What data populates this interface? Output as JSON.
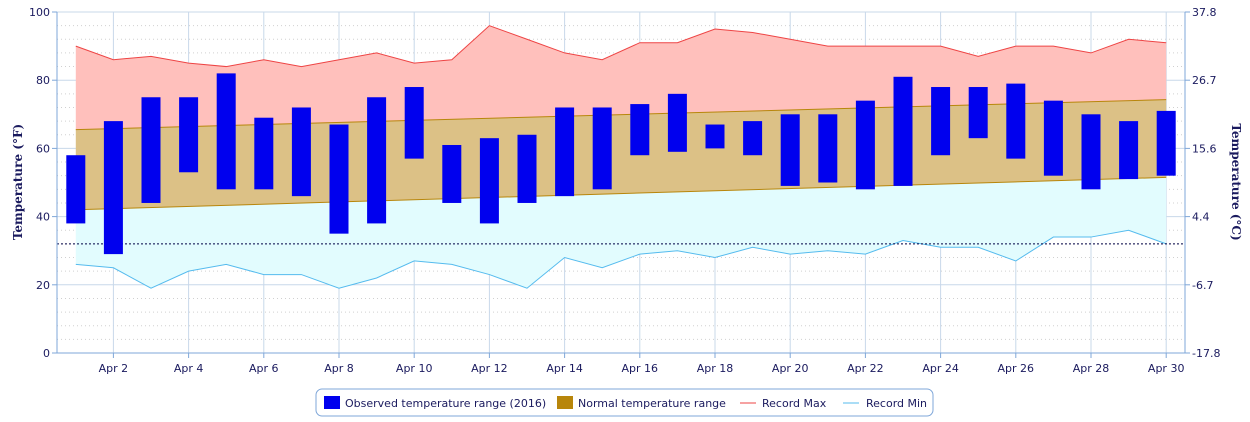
{
  "chart_data": {
    "type": "bar",
    "categories": [
      "Apr 1",
      "Apr 2",
      "Apr 3",
      "Apr 4",
      "Apr 5",
      "Apr 6",
      "Apr 7",
      "Apr 8",
      "Apr 9",
      "Apr 10",
      "Apr 11",
      "Apr 12",
      "Apr 13",
      "Apr 14",
      "Apr 15",
      "Apr 16",
      "Apr 17",
      "Apr 18",
      "Apr 19",
      "Apr 20",
      "Apr 21",
      "Apr 22",
      "Apr 23",
      "Apr 24",
      "Apr 25",
      "Apr 26",
      "Apr 27",
      "Apr 28",
      "Apr 29",
      "Apr 30"
    ],
    "x_tick_labels": [
      "Apr 2",
      "Apr 4",
      "Apr 6",
      "Apr 8",
      "Apr 10",
      "Apr 12",
      "Apr 14",
      "Apr 16",
      "Apr 18",
      "Apr 20",
      "Apr 22",
      "Apr 24",
      "Apr 26",
      "Apr 28",
      "Apr 30"
    ],
    "ylabel_left": "Temperature (°F)",
    "ylabel_right": "Temperature (°C)",
    "ylim": [
      0,
      100
    ],
    "left_ticks": [
      "0",
      "20",
      "40",
      "60",
      "80",
      "100"
    ],
    "right_ticks": [
      "-17.8",
      "-6.7",
      "4.4",
      "15.6",
      "26.7",
      "37.8"
    ],
    "reference_line": 32,
    "series": [
      {
        "name": "Observed temperature range (2016)",
        "kind": "range-bar",
        "color": "#0000ee",
        "low": [
          38,
          29,
          44,
          53,
          48,
          48,
          46,
          35,
          38,
          57,
          44,
          38,
          44,
          46,
          48,
          58,
          59,
          60,
          58,
          49,
          50,
          48,
          49,
          58,
          63,
          57,
          52,
          48,
          51,
          52
        ],
        "high": [
          58,
          68,
          75,
          75,
          82,
          69,
          72,
          67,
          75,
          78,
          61,
          63,
          64,
          72,
          72,
          73,
          76,
          67,
          68,
          70,
          70,
          74,
          81,
          78,
          78,
          79,
          74,
          70,
          68,
          71
        ]
      },
      {
        "name": "Normal temperature range",
        "kind": "range-area",
        "color": "#b8860b",
        "low_start": 42,
        "low_end": 51.5,
        "high_start": 65.5,
        "high_end": 74.3
      },
      {
        "name": "Record Max",
        "kind": "line",
        "color": "#ee4444",
        "values": [
          90,
          86,
          87,
          85,
          84,
          86,
          84,
          86,
          88,
          85,
          86,
          96,
          92,
          88,
          86,
          91,
          91,
          95,
          94,
          92,
          90,
          90,
          90,
          90,
          87,
          90,
          90,
          88,
          92,
          91
        ]
      },
      {
        "name": "Record Min",
        "kind": "line",
        "color": "#55bbee",
        "values": [
          26,
          25,
          19,
          24,
          26,
          23,
          23,
          19,
          22,
          27,
          26,
          23,
          19,
          28,
          25,
          29,
          30,
          28,
          31,
          29,
          30,
          29,
          33,
          31,
          31,
          27,
          34,
          34,
          36,
          32
        ]
      }
    ],
    "grid": true,
    "legend_position": "bottom-center"
  }
}
